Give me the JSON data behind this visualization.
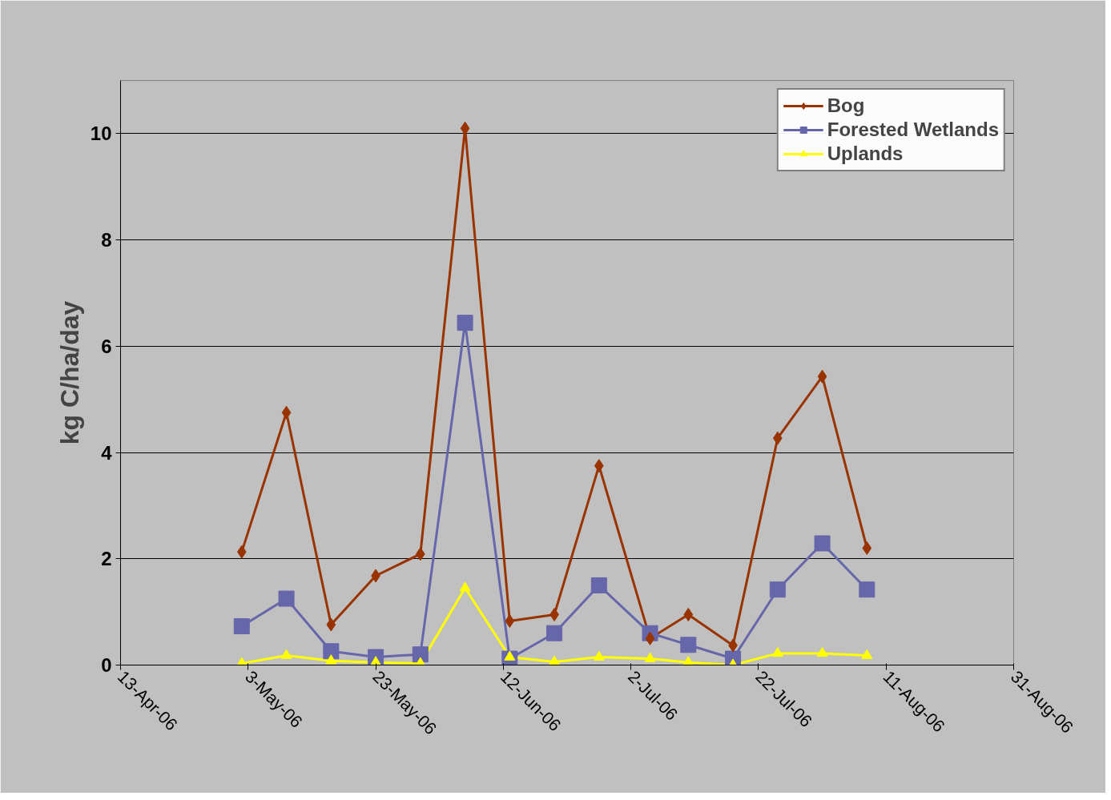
{
  "chart_data": {
    "type": "line",
    "ylabel": "kg C/ha/day",
    "x": [
      "2006-05-02",
      "2006-05-09",
      "2006-05-16",
      "2006-05-23",
      "2006-05-30",
      "2006-06-06",
      "2006-06-13",
      "2006-06-20",
      "2006-06-27",
      "2006-07-05",
      "2006-07-11",
      "2006-07-18",
      "2006-07-25",
      "2006-08-01",
      "2006-08-08"
    ],
    "series": [
      {
        "name": "Bog",
        "color": "#993300",
        "marker": "diamond",
        "values": [
          2.13,
          4.75,
          0.76,
          1.68,
          2.09,
          10.1,
          0.83,
          0.95,
          3.75,
          0.5,
          0.95,
          0.37,
          4.27,
          5.43,
          2.2
        ]
      },
      {
        "name": "Forested Wetlands",
        "color": "#6666aa",
        "marker": "square",
        "values": [
          0.73,
          1.25,
          0.26,
          0.15,
          0.2,
          6.44,
          0.12,
          0.6,
          1.5,
          0.6,
          0.38,
          0.12,
          1.42,
          2.29,
          1.42
        ]
      },
      {
        "name": "Uplands",
        "color": "#ffff00",
        "marker": "triangle",
        "values": [
          0.03,
          0.18,
          0.08,
          0.05,
          0.03,
          1.45,
          0.15,
          0.06,
          0.15,
          0.12,
          0.05,
          0.0,
          0.22,
          0.22,
          0.18
        ]
      }
    ],
    "xlim": [
      "2006-04-13",
      "2006-08-31"
    ],
    "xticks": [
      {
        "value": "2006-04-13",
        "label": "13-Apr-06"
      },
      {
        "value": "2006-05-03",
        "label": "3-May-06"
      },
      {
        "value": "2006-05-23",
        "label": "23-May-06"
      },
      {
        "value": "2006-06-12",
        "label": "12-Jun-06"
      },
      {
        "value": "2006-07-02",
        "label": "2-Jul-06"
      },
      {
        "value": "2006-07-22",
        "label": "22-Jul-06"
      },
      {
        "value": "2006-08-11",
        "label": "11-Aug-06"
      },
      {
        "value": "2006-08-31",
        "label": "31-Aug-06"
      }
    ],
    "ylim": [
      0,
      11
    ],
    "yticks": [
      0,
      2,
      4,
      6,
      8,
      10
    ],
    "grid": "y",
    "legend": "top right",
    "line_style": "solid"
  }
}
